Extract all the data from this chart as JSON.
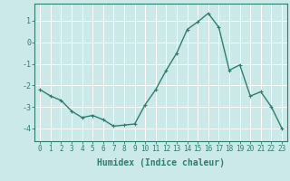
{
  "x": [
    0,
    1,
    2,
    3,
    4,
    5,
    6,
    7,
    8,
    9,
    10,
    11,
    12,
    13,
    14,
    15,
    16,
    17,
    18,
    19,
    20,
    21,
    22,
    23
  ],
  "y": [
    -2.2,
    -2.5,
    -2.7,
    -3.2,
    -3.5,
    -3.4,
    -3.6,
    -3.9,
    -3.85,
    -3.8,
    -2.9,
    -2.2,
    -1.3,
    -0.5,
    0.6,
    0.95,
    1.35,
    0.7,
    -1.3,
    -1.05,
    -2.5,
    -2.3,
    -3.0,
    -4.0
  ],
  "line_color": "#2e7d6e",
  "marker": "+",
  "markersize": 3,
  "markeredgewidth": 0.8,
  "linewidth": 1.0,
  "xlabel": "Humidex (Indice chaleur)",
  "xlabel_fontsize": 7,
  "xlabel_fontweight": "bold",
  "xlim": [
    -0.5,
    23.5
  ],
  "ylim": [
    -4.6,
    1.8
  ],
  "yticks": [
    -4,
    -3,
    -2,
    -1,
    0,
    1
  ],
  "xticks": [
    0,
    1,
    2,
    3,
    4,
    5,
    6,
    7,
    8,
    9,
    10,
    11,
    12,
    13,
    14,
    15,
    16,
    17,
    18,
    19,
    20,
    21,
    22,
    23
  ],
  "background_color": "#cce9e9",
  "grid_color": "#ffffff",
  "tick_fontsize": 5.5,
  "spine_color": "#2e7d6e"
}
